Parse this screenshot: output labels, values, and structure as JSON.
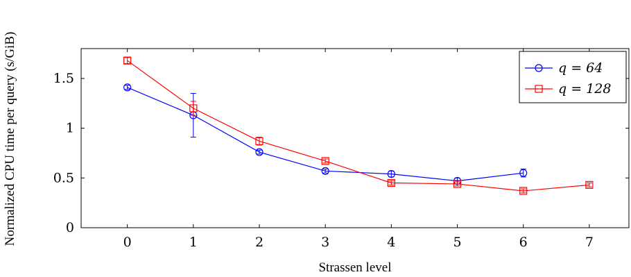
{
  "chart_data": {
    "type": "line",
    "xlabel": "Strassen level",
    "ylabel": "Normalized CPU time per query (s/GiB)",
    "xlim": [
      -0.7,
      7.6
    ],
    "ylim": [
      0,
      1.8
    ],
    "x_ticks": [
      0,
      1,
      2,
      3,
      4,
      5,
      6,
      7
    ],
    "x_tick_labels": [
      "0",
      "1",
      "2",
      "3",
      "4",
      "5",
      "6",
      "7"
    ],
    "y_ticks": [
      0,
      0.5,
      1,
      1.5
    ],
    "y_tick_labels": [
      "0",
      "0.5",
      "1",
      "1.5"
    ],
    "grid": false,
    "legend_position": "top-right",
    "series": [
      {
        "name": "q = 64",
        "color": "#0000ff",
        "marker": "circle",
        "x": [
          0,
          1,
          2,
          3,
          4,
          5,
          6
        ],
        "y": [
          1.41,
          1.13,
          0.76,
          0.57,
          0.54,
          0.47,
          0.55
        ],
        "err": [
          0.02,
          0.22,
          0.02,
          0.02,
          0.03,
          0.03,
          0.04
        ]
      },
      {
        "name": "q = 128",
        "color": "#ff0000",
        "marker": "square",
        "x": [
          0,
          1,
          2,
          3,
          4,
          5,
          6,
          7
        ],
        "y": [
          1.68,
          1.2,
          0.87,
          0.67,
          0.45,
          0.44,
          0.37,
          0.43
        ],
        "err": [
          0.03,
          0.07,
          0.04,
          0.02,
          0.02,
          0.02,
          0.02,
          0.02
        ]
      }
    ]
  }
}
